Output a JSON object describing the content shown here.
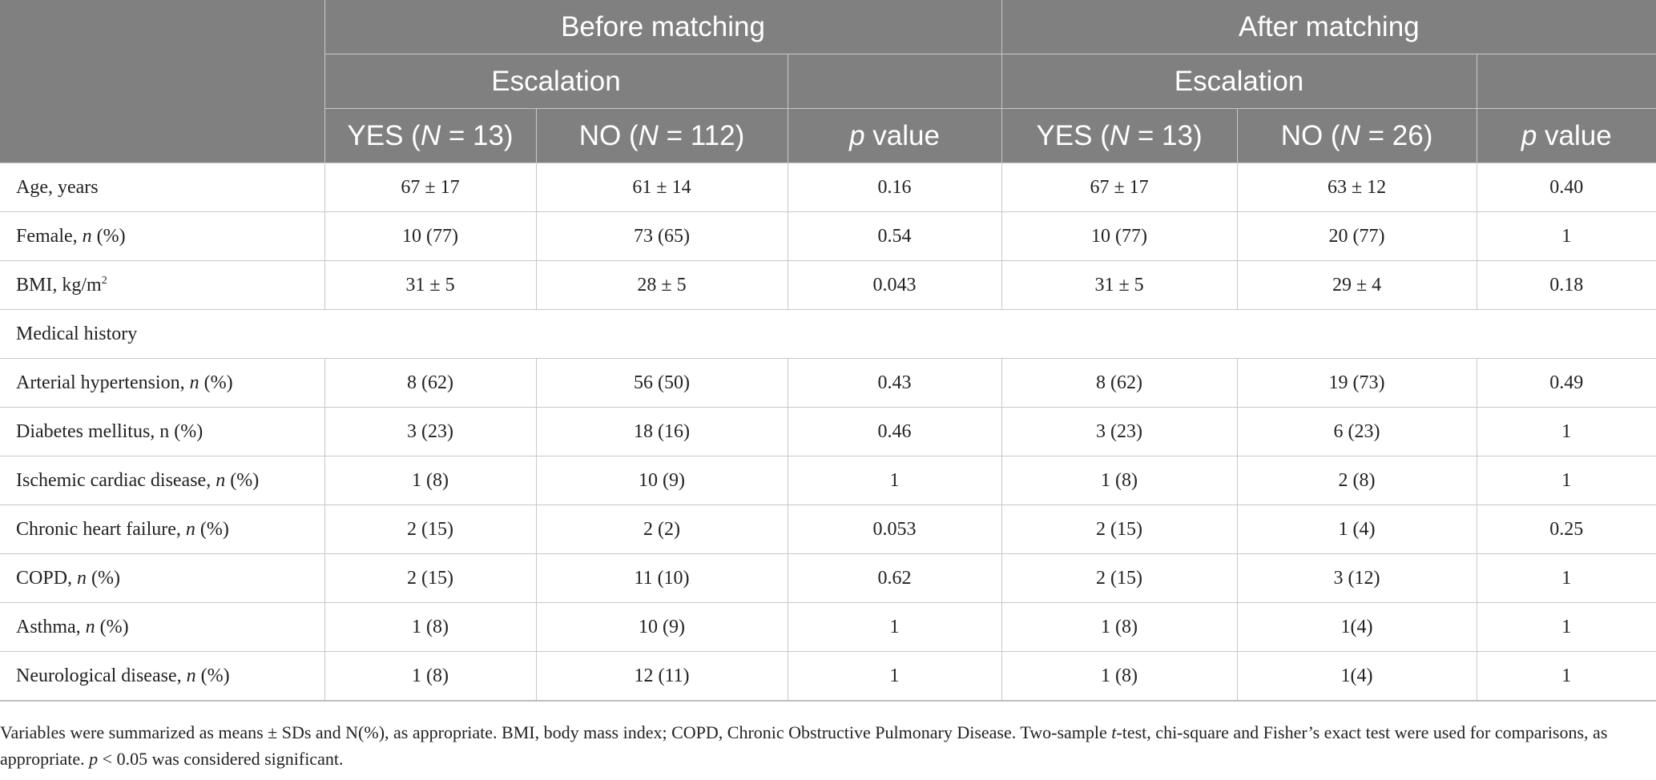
{
  "header": {
    "group_before": "Before matching",
    "group_after": "After matching",
    "subgroup_before": "Escalation",
    "subgroup_after": "Escalation",
    "col_before_yes": [
      "YES (",
      "N",
      " = 13)"
    ],
    "col_before_no": [
      "NO (",
      "N",
      " = 112)"
    ],
    "col_before_p": [
      "p",
      " value"
    ],
    "col_after_yes": [
      "YES (",
      "N",
      " = 13)"
    ],
    "col_after_no": [
      "NO (",
      "N",
      " = 26)"
    ],
    "col_after_p": [
      "p",
      " value"
    ]
  },
  "rows": [
    {
      "label": [
        "Age, years"
      ],
      "values": [
        "67 ± 17",
        "61 ± 14",
        "0.16",
        "67 ± 17",
        "63 ± 12",
        "0.40"
      ]
    },
    {
      "label": [
        "Female, ",
        "n",
        " (%)"
      ],
      "values": [
        "10 (77)",
        "73 (65)",
        "0.54",
        "10 (77)",
        "20 (77)",
        "1"
      ]
    },
    {
      "label": [
        "BMI, kg/m",
        "2"
      ],
      "values": [
        "31 ± 5",
        "28 ± 5",
        "0.043",
        "31 ± 5",
        "29 ± 4",
        "0.18"
      ]
    },
    {
      "label": [
        "Medical history"
      ],
      "values": []
    },
    {
      "label": [
        "Arterial hypertension, ",
        "n",
        " (%)"
      ],
      "values": [
        "8 (62)",
        "56 (50)",
        "0.43",
        "8 (62)",
        "19 (73)",
        "0.49"
      ]
    },
    {
      "label": [
        "Diabetes mellitus, n (%)"
      ],
      "values": [
        "3 (23)",
        "18 (16)",
        "0.46",
        "3 (23)",
        "6 (23)",
        "1"
      ]
    },
    {
      "label": [
        "Ischemic cardiac disease, ",
        "n",
        " (%)"
      ],
      "values": [
        "1 (8)",
        "10 (9)",
        "1",
        "1 (8)",
        "2 (8)",
        "1"
      ]
    },
    {
      "label": [
        "Chronic heart failure, ",
        "n",
        " (%)"
      ],
      "values": [
        "2 (15)",
        "2 (2)",
        "0.053",
        "2 (15)",
        "1 (4)",
        "0.25"
      ]
    },
    {
      "label": [
        "COPD, ",
        "n",
        " (%)"
      ],
      "values": [
        "2 (15)",
        "11 (10)",
        "0.62",
        "2 (15)",
        "3 (12)",
        "1"
      ]
    },
    {
      "label": [
        "Asthma, ",
        "n",
        " (%)"
      ],
      "values": [
        "1 (8)",
        "10 (9)",
        "1",
        "1 (8)",
        "1(4)",
        "1"
      ]
    },
    {
      "label": [
        "Neurological disease, ",
        "n",
        " (%)"
      ],
      "values": [
        "1 (8)",
        "12 (11)",
        "1",
        "1 (8)",
        "1(4)",
        "1"
      ]
    }
  ],
  "footnote": [
    "Variables were summarized as means ± SDs and N(%), as appropriate. BMI, body mass index; COPD, Chronic Obstructive Pulmonary Disease. Two-sample ",
    "t",
    "-test, chi-square and Fisher’s exact test were used for comparisons, as appropriate. ",
    "p",
    " < 0.05 was considered significant."
  ]
}
